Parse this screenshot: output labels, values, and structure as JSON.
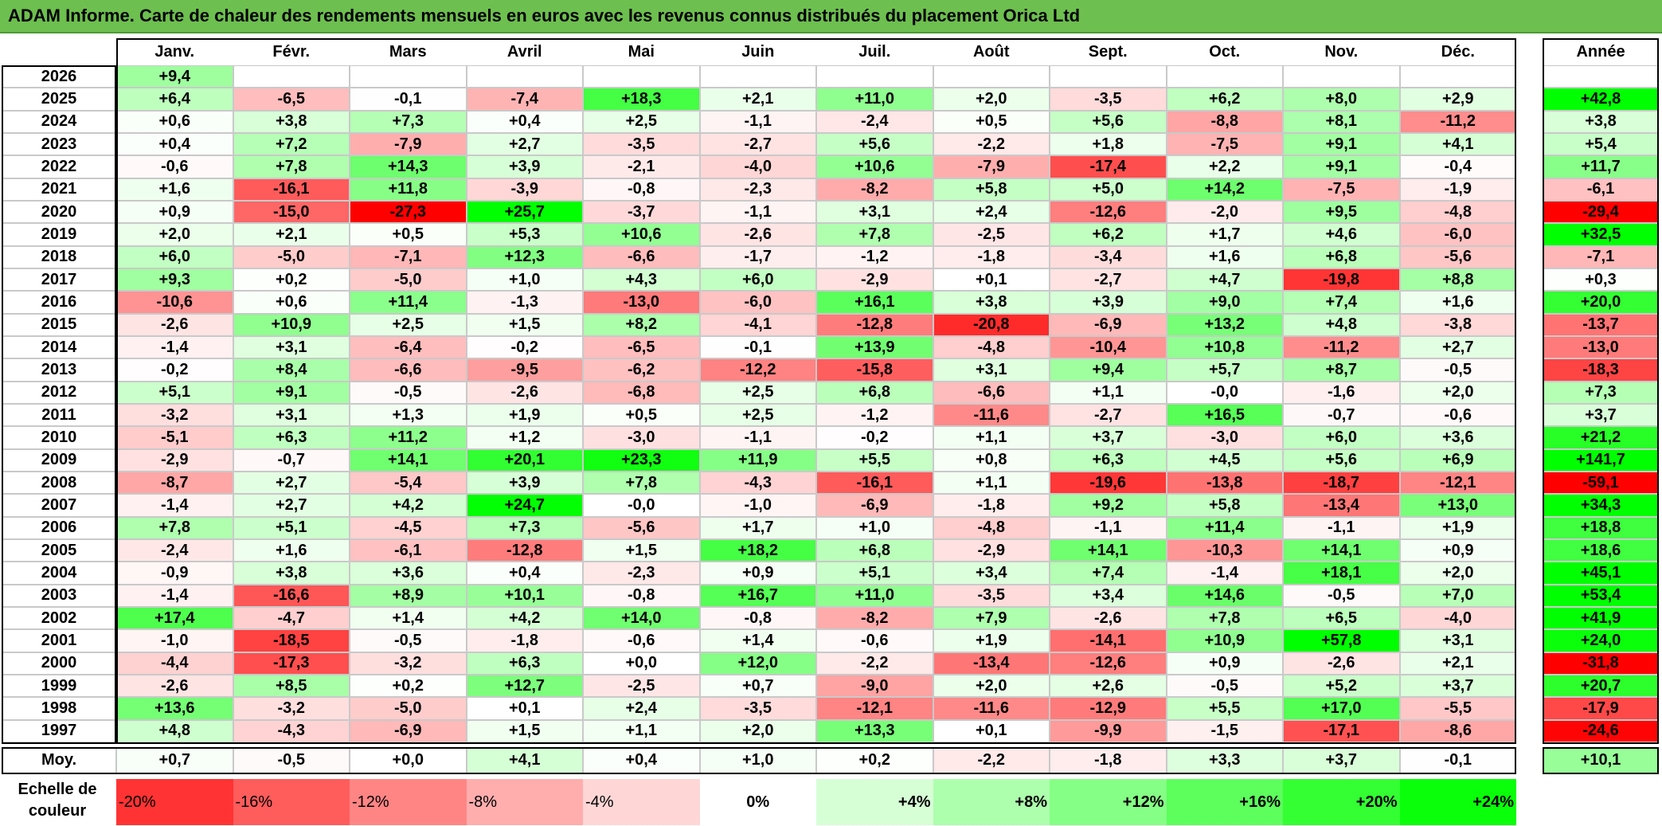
{
  "title": "ADAM Informe. Carte de chaleur des rendements mensuels en euros avec les revenus connus distribués du placement Orica Ltd",
  "annual_header": "Année",
  "avg_label": "Moy.",
  "scale_label": "Echelle de couleur",
  "colors": {
    "title_bg": "#6dbf4f",
    "neg_max": "#ff0000",
    "pos_max": "#00ff00",
    "neutral": "#ffffff"
  },
  "chart_data": {
    "type": "heatmap",
    "months": [
      "Janv.",
      "Févr.",
      "Mars",
      "Avril",
      "Mai",
      "Juin",
      "Juil.",
      "Août",
      "Sept.",
      "Oct.",
      "Nov.",
      "Déc."
    ],
    "rows": [
      {
        "year": "2026",
        "values": [
          "+9,4",
          "",
          "",
          "",
          "",
          "",
          "",
          "",
          "",
          "",
          "",
          ""
        ],
        "annual": ""
      },
      {
        "year": "2025",
        "values": [
          "+6,4",
          "-6,5",
          "-0,1",
          "-7,4",
          "+18,3",
          "+2,1",
          "+11,0",
          "+2,0",
          "-3,5",
          "+6,2",
          "+8,0",
          "+2,9"
        ],
        "annual": "+42,8"
      },
      {
        "year": "2024",
        "values": [
          "+0,6",
          "+3,8",
          "+7,3",
          "+0,4",
          "+2,5",
          "-1,1",
          "-2,4",
          "+0,5",
          "+5,6",
          "-8,8",
          "+8,1",
          "-11,2"
        ],
        "annual": "+3,8"
      },
      {
        "year": "2023",
        "values": [
          "+0,4",
          "+7,2",
          "-7,9",
          "+2,7",
          "-3,5",
          "-2,7",
          "+5,6",
          "-2,2",
          "+1,8",
          "-7,5",
          "+9,1",
          "+4,1"
        ],
        "annual": "+5,4"
      },
      {
        "year": "2022",
        "values": [
          "-0,6",
          "+7,8",
          "+14,3",
          "+3,9",
          "-2,1",
          "-4,0",
          "+10,6",
          "-7,9",
          "-17,4",
          "+2,2",
          "+9,1",
          "-0,4"
        ],
        "annual": "+11,7"
      },
      {
        "year": "2021",
        "values": [
          "+1,6",
          "-16,1",
          "+11,8",
          "-3,9",
          "-0,8",
          "-2,3",
          "-8,2",
          "+5,8",
          "+5,0",
          "+14,2",
          "-7,5",
          "-1,9"
        ],
        "annual": "-6,1"
      },
      {
        "year": "2020",
        "values": [
          "+0,9",
          "-15,0",
          "-27,3",
          "+25,7",
          "-3,7",
          "-1,1",
          "+3,1",
          "+2,4",
          "-12,6",
          "-2,0",
          "+9,5",
          "-4,8"
        ],
        "annual": "-29,4"
      },
      {
        "year": "2019",
        "values": [
          "+2,0",
          "+2,1",
          "+0,5",
          "+5,3",
          "+10,6",
          "-2,6",
          "+7,8",
          "-2,5",
          "+6,2",
          "+1,7",
          "+4,6",
          "-6,0"
        ],
        "annual": "+32,5"
      },
      {
        "year": "2018",
        "values": [
          "+6,0",
          "-5,0",
          "-7,1",
          "+12,3",
          "-6,6",
          "-1,7",
          "-1,2",
          "-1,8",
          "-3,4",
          "+1,6",
          "+6,8",
          "-5,6"
        ],
        "annual": "-7,1"
      },
      {
        "year": "2017",
        "values": [
          "+9,3",
          "+0,2",
          "-5,0",
          "+1,0",
          "+4,3",
          "+6,0",
          "-2,9",
          "+0,1",
          "-2,7",
          "+4,7",
          "-19,8",
          "+8,8"
        ],
        "annual": "+0,3"
      },
      {
        "year": "2016",
        "values": [
          "-10,6",
          "+0,6",
          "+11,4",
          "-1,3",
          "-13,0",
          "-6,0",
          "+16,1",
          "+3,8",
          "+3,9",
          "+9,0",
          "+7,4",
          "+1,6"
        ],
        "annual": "+20,0"
      },
      {
        "year": "2015",
        "values": [
          "-2,6",
          "+10,9",
          "+2,5",
          "+1,5",
          "+8,2",
          "-4,1",
          "-12,8",
          "-20,8",
          "-6,9",
          "+13,2",
          "+4,8",
          "-3,8"
        ],
        "annual": "-13,7"
      },
      {
        "year": "2014",
        "values": [
          "-1,4",
          "+3,1",
          "-6,4",
          "-0,2",
          "-6,5",
          "-0,1",
          "+13,9",
          "-4,8",
          "-10,4",
          "+10,8",
          "-11,2",
          "+2,7"
        ],
        "annual": "-13,0"
      },
      {
        "year": "2013",
        "values": [
          "-0,2",
          "+8,4",
          "-6,6",
          "-9,5",
          "-6,2",
          "-12,2",
          "-15,8",
          "+3,1",
          "+9,4",
          "+5,7",
          "+8,7",
          "-0,5"
        ],
        "annual": "-18,3"
      },
      {
        "year": "2012",
        "values": [
          "+5,1",
          "+9,1",
          "-0,5",
          "-2,6",
          "-6,8",
          "+2,5",
          "+6,8",
          "-6,6",
          "+1,1",
          "-0,0",
          "-1,6",
          "+2,0"
        ],
        "annual": "+7,3"
      },
      {
        "year": "2011",
        "values": [
          "-3,2",
          "+3,1",
          "+1,3",
          "+1,9",
          "+0,5",
          "+2,5",
          "-1,2",
          "-11,6",
          "-2,7",
          "+16,5",
          "-0,7",
          "-0,6"
        ],
        "annual": "+3,7"
      },
      {
        "year": "2010",
        "values": [
          "-5,1",
          "+6,3",
          "+11,2",
          "+1,2",
          "-3,0",
          "-1,1",
          "-0,2",
          "+1,1",
          "+3,7",
          "-3,0",
          "+6,0",
          "+3,6"
        ],
        "annual": "+21,2"
      },
      {
        "year": "2009",
        "values": [
          "-2,9",
          "-0,7",
          "+14,1",
          "+20,1",
          "+23,3",
          "+11,9",
          "+5,5",
          "+0,8",
          "+6,3",
          "+4,5",
          "+5,6",
          "+6,9"
        ],
        "annual": "+141,7"
      },
      {
        "year": "2008",
        "values": [
          "-8,7",
          "+2,7",
          "-5,4",
          "+3,9",
          "+7,8",
          "-4,3",
          "-16,1",
          "+1,1",
          "-19,6",
          "-13,8",
          "-18,7",
          "-12,1"
        ],
        "annual": "-59,1"
      },
      {
        "year": "2007",
        "values": [
          "-1,4",
          "+2,7",
          "+4,2",
          "+24,7",
          "-0,0",
          "-1,0",
          "-6,9",
          "-1,8",
          "+9,2",
          "+5,8",
          "-13,4",
          "+13,0"
        ],
        "annual": "+34,3"
      },
      {
        "year": "2006",
        "values": [
          "+7,8",
          "+5,1",
          "-4,5",
          "+7,3",
          "-5,6",
          "+1,7",
          "+1,0",
          "-4,8",
          "-1,1",
          "+11,4",
          "-1,1",
          "+1,9"
        ],
        "annual": "+18,8"
      },
      {
        "year": "2005",
        "values": [
          "-2,4",
          "+1,6",
          "-6,1",
          "-12,8",
          "+1,5",
          "+18,2",
          "+6,8",
          "-2,9",
          "+14,1",
          "-10,3",
          "+14,1",
          "+0,9"
        ],
        "annual": "+18,6"
      },
      {
        "year": "2004",
        "values": [
          "-0,9",
          "+3,8",
          "+3,6",
          "+0,4",
          "-2,3",
          "+0,9",
          "+5,1",
          "+3,4",
          "+7,4",
          "-1,4",
          "+18,1",
          "+2,0"
        ],
        "annual": "+45,1"
      },
      {
        "year": "2003",
        "values": [
          "-1,4",
          "-16,6",
          "+8,9",
          "+10,1",
          "-0,8",
          "+16,7",
          "+11,0",
          "-3,5",
          "+3,4",
          "+14,6",
          "-0,5",
          "+7,0"
        ],
        "annual": "+53,4"
      },
      {
        "year": "2002",
        "values": [
          "+17,4",
          "-4,7",
          "+1,4",
          "+4,2",
          "+14,0",
          "-0,8",
          "-8,2",
          "+7,9",
          "-2,6",
          "+7,8",
          "+6,5",
          "-4,0"
        ],
        "annual": "+41,9"
      },
      {
        "year": "2001",
        "values": [
          "-1,0",
          "-18,5",
          "-0,5",
          "-1,8",
          "-0,6",
          "+1,4",
          "-0,6",
          "+1,9",
          "-14,1",
          "+10,9",
          "+57,8",
          "+3,1"
        ],
        "annual": "+24,0"
      },
      {
        "year": "2000",
        "values": [
          "-4,4",
          "-17,3",
          "-3,2",
          "+6,3",
          "+0,0",
          "+12,0",
          "-2,2",
          "-13,4",
          "-12,6",
          "+0,9",
          "-2,6",
          "+2,1"
        ],
        "annual": "-31,8"
      },
      {
        "year": "1999",
        "values": [
          "-2,6",
          "+8,5",
          "+0,2",
          "+12,7",
          "-2,5",
          "+0,7",
          "-9,0",
          "+2,0",
          "+2,6",
          "-0,5",
          "+5,2",
          "+3,7"
        ],
        "annual": "+20,7"
      },
      {
        "year": "1998",
        "values": [
          "+13,6",
          "-3,2",
          "-5,0",
          "+0,1",
          "+2,4",
          "-3,5",
          "-12,1",
          "-11,6",
          "-12,9",
          "+5,5",
          "+17,0",
          "-5,5"
        ],
        "annual": "-17,9"
      },
      {
        "year": "1997",
        "values": [
          "+4,8",
          "-4,3",
          "-6,9",
          "+1,5",
          "+1,1",
          "+2,0",
          "+13,3",
          "+0,1",
          "-9,9",
          "-1,5",
          "-17,1",
          "-8,6"
        ],
        "annual": "-24,6"
      }
    ],
    "averages": [
      "+0,7",
      "-0,5",
      "+0,0",
      "+4,1",
      "+0,4",
      "+1,0",
      "+0,2",
      "-2,2",
      "-1,8",
      "+3,3",
      "+3,7",
      "-0,1"
    ],
    "average_annual": "+10,1",
    "scale": [
      "-20%",
      "-16%",
      "-12%",
      "-8%",
      "-4%",
      "0%",
      "+4%",
      "+8%",
      "+12%",
      "+16%",
      "+20%",
      "+24%"
    ],
    "scale_values": [
      -20,
      -16,
      -12,
      -8,
      -4,
      0,
      4,
      8,
      12,
      16,
      20,
      24
    ]
  }
}
